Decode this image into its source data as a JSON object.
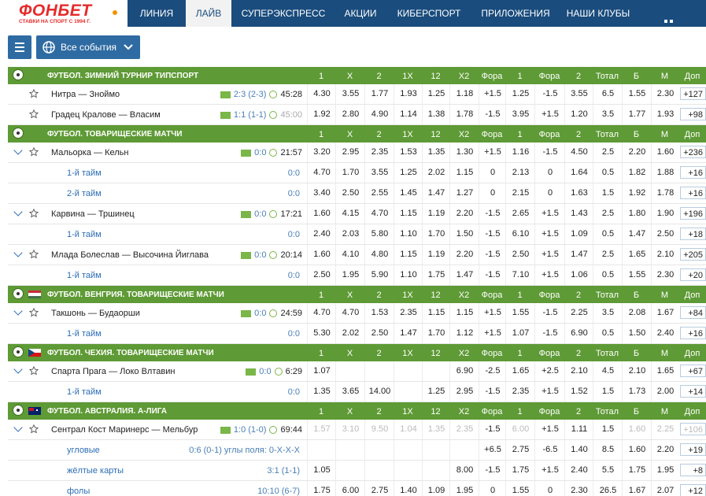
{
  "header": {
    "logo": "ФОНБЕТ",
    "tagline": "СТАВКИ НА СПОРТ С 1994 Г.",
    "nav": [
      "ЛИНИЯ",
      "ЛАЙВ",
      "СУПЕРЭКСПРЕСС",
      "АКЦИИ",
      "КИБЕРСПОРТ",
      "ПРИЛОЖЕНИЯ",
      "НАШИ КЛУБЫ"
    ],
    "active": 1
  },
  "toolbar": {
    "filter": "Все события"
  },
  "table": {
    "columns": [
      "1",
      "X",
      "2",
      "1X",
      "12",
      "X2",
      "Фора",
      "1",
      "Фора",
      "2",
      "Тотал",
      "Б",
      "М",
      "Доп"
    ],
    "sections": [
      {
        "title": "ФУТБОЛ. ЗИМНИЙ ТУРНИР ТИПСПОРТ",
        "rows": [
          {
            "kind": "match",
            "expand": false,
            "name": "Нитра — Зноймо",
            "score": "2:3 (2-3)",
            "time": "45:28",
            "odds": [
              "4.30",
              "3.55",
              "1.77",
              "1.93",
              "1.25",
              "1.18",
              "+1.5",
              "1.25",
              "-1.5",
              "3.55",
              "6.5",
              "1.55",
              "2.30",
              "+127"
            ]
          },
          {
            "kind": "match",
            "expand": false,
            "name": "Градец Кралове — Власим",
            "score": "1:1 (1-1)",
            "time": "45:00",
            "time_muted": true,
            "odds": [
              "1.92",
              "2.80",
              "4.90",
              "1.14",
              "1.38",
              "1.78",
              "-1.5",
              "3.95",
              "+1.5",
              "1.20",
              "3.5",
              "1.77",
              "1.93",
              "+98"
            ]
          }
        ]
      },
      {
        "title": "ФУТБОЛ. ТОВАРИЩЕСКИЕ МАТЧИ",
        "rows": [
          {
            "kind": "match",
            "expand": true,
            "name": "Мальорка — Кельн",
            "score": "0:0",
            "time": "21:57",
            "odds": [
              "3.20",
              "2.95",
              "2.35",
              "1.53",
              "1.35",
              "1.30",
              "+1.5",
              "1.16",
              "-1.5",
              "4.50",
              "2.5",
              "2.20",
              "1.60",
              "+236"
            ]
          },
          {
            "kind": "sub",
            "name": "1-й тайм",
            "score": "0:0",
            "odds": [
              "4.70",
              "1.70",
              "3.55",
              "1.25",
              "2.02",
              "1.15",
              "0",
              "2.13",
              "0",
              "1.64",
              "0.5",
              "1.82",
              "1.88",
              "+16"
            ]
          },
          {
            "kind": "sub",
            "name": "2-й тайм",
            "score": "0:0",
            "odds": [
              "3.40",
              "2.50",
              "2.55",
              "1.45",
              "1.47",
              "1.27",
              "0",
              "2.15",
              "0",
              "1.63",
              "1.5",
              "1.92",
              "1.78",
              "+16"
            ]
          },
          {
            "kind": "match",
            "expand": true,
            "name": "Карвина — Тршинец",
            "score": "0:0",
            "time": "17:21",
            "odds": [
              "1.60",
              "4.15",
              "4.70",
              "1.15",
              "1.19",
              "2.20",
              "-1.5",
              "2.65",
              "+1.5",
              "1.43",
              "2.5",
              "1.80",
              "1.90",
              "+196"
            ]
          },
          {
            "kind": "sub",
            "name": "1-й тайм",
            "score": "0:0",
            "odds": [
              "2.40",
              "2.03",
              "5.80",
              "1.10",
              "1.70",
              "1.50",
              "-1.5",
              "6.10",
              "+1.5",
              "1.09",
              "0.5",
              "1.47",
              "2.50",
              "+18"
            ]
          },
          {
            "kind": "match",
            "expand": true,
            "name": "Млада Болеслав — Высочина Йиглава",
            "score": "0:0",
            "time": "20:14",
            "odds": [
              "1.60",
              "4.10",
              "4.80",
              "1.15",
              "1.19",
              "2.20",
              "-1.5",
              "2.50",
              "+1.5",
              "1.47",
              "2.5",
              "1.65",
              "2.10",
              "+205"
            ]
          },
          {
            "kind": "sub",
            "name": "1-й тайм",
            "score": "0:0",
            "odds": [
              "2.50",
              "1.95",
              "5.90",
              "1.10",
              "1.75",
              "1.47",
              "-1.5",
              "7.10",
              "+1.5",
              "1.06",
              "0.5",
              "1.55",
              "2.30",
              "+20"
            ]
          }
        ]
      },
      {
        "title": "ФУТБОЛ. ВЕНГРИЯ. ТОВАРИЩЕСКИЕ МАТЧИ",
        "flag": "hu",
        "rows": [
          {
            "kind": "match",
            "expand": true,
            "name": "Такшонь — Будаорши",
            "score": "0:0",
            "time": "24:59",
            "odds": [
              "4.70",
              "4.70",
              "1.53",
              "2.35",
              "1.15",
              "1.15",
              "+1.5",
              "1.55",
              "-1.5",
              "2.25",
              "3.5",
              "2.08",
              "1.67",
              "+84"
            ]
          },
          {
            "kind": "sub",
            "name": "1-й тайм",
            "score": "0:0",
            "odds": [
              "5.30",
              "2.02",
              "2.50",
              "1.47",
              "1.70",
              "1.12",
              "+1.5",
              "1.07",
              "-1.5",
              "6.90",
              "0.5",
              "1.50",
              "2.40",
              "+16"
            ]
          }
        ]
      },
      {
        "title": "ФУТБОЛ. ЧЕХИЯ. ТОВАРИЩЕСКИЕ МАТЧИ",
        "flag": "cz",
        "rows": [
          {
            "kind": "match",
            "expand": true,
            "name": "Спарта Прага — Локо Влтавин",
            "score": "0:0",
            "time": "6:29",
            "odds": [
              "1.07",
              null,
              null,
              null,
              null,
              "6.90",
              "-2.5",
              "1.65",
              "+2.5",
              "2.10",
              "4.5",
              "2.10",
              "1.65",
              "+67"
            ]
          },
          {
            "kind": "sub",
            "name": "1-й тайм",
            "score": "0:0",
            "odds": [
              "1.35",
              "3.65",
              "14.00",
              null,
              "1.25",
              "2.95",
              "-1.5",
              "2.35",
              "+1.5",
              "1.52",
              "1.5",
              "1.73",
              "2.00",
              "+14"
            ]
          }
        ]
      },
      {
        "title": "ФУТБОЛ. АВСТРАЛИЯ. А-ЛИГА",
        "flag": "au",
        "rows": [
          {
            "kind": "match",
            "expand": true,
            "name": "Сентрал Кост Маринерс — Мельбур",
            "score": "1:0 (1-0)",
            "time": "69:44",
            "dimmed": [
              0,
              1,
              2,
              3,
              4,
              5,
              7,
              11,
              12,
              13
            ],
            "odds": [
              "1.57",
              "3.10",
              "9.50",
              "1.04",
              "1.35",
              "2.35",
              "-1.5",
              "6.00",
              "+1.5",
              "1.11",
              "1.5",
              "1.60",
              "2.25",
              "+106"
            ]
          },
          {
            "kind": "sub",
            "name": "угловые",
            "score": "0:6 (0-1) углы поля: 0-Х-Х-Х",
            "odds": [
              null,
              null,
              null,
              null,
              null,
              null,
              "+6.5",
              "2.75",
              "-6.5",
              "1.40",
              "8.5",
              "1.60",
              "2.20",
              "+19"
            ]
          },
          {
            "kind": "sub",
            "name": "жёлтые карты",
            "score": "3:1 (1-1)",
            "odds": [
              "1.05",
              null,
              null,
              null,
              null,
              "8.00",
              "-1.5",
              "1.75",
              "+1.5",
              "2.40",
              "5.5",
              "1.75",
              "1.95",
              "+8"
            ]
          },
          {
            "kind": "sub",
            "name": "фолы",
            "score": "10:10 (6-7)",
            "odds": [
              "1.75",
              "6.00",
              "2.75",
              "1.40",
              "1.09",
              "1.95",
              "0",
              "1.55",
              "0",
              "2.30",
              "26.5",
              "1.67",
              "2.07",
              "+12"
            ]
          }
        ]
      }
    ]
  }
}
